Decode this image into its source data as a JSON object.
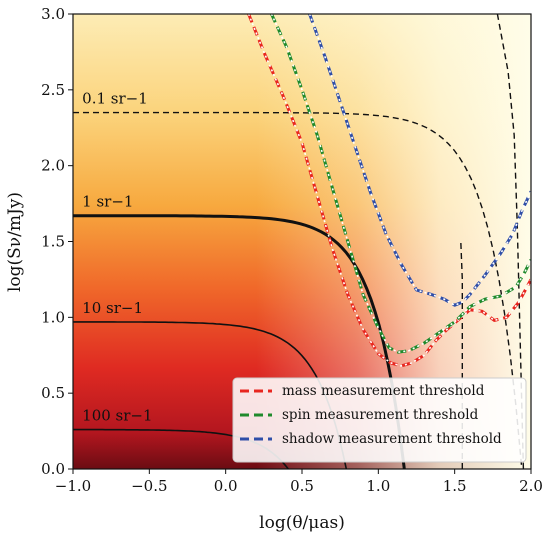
{
  "chart_data": {
    "type": "line",
    "xlabel": "log(θ/μas)",
    "ylabel": "log(Sν/mJy)",
    "xlim": [
      -1.0,
      2.0
    ],
    "ylim": [
      0.0,
      3.0
    ],
    "x_ticks": [
      "−1.0",
      "−0.5",
      "0.0",
      "0.5",
      "1.0",
      "1.5",
      "2.0"
    ],
    "y_ticks": [
      "0.0",
      "0.5",
      "1.0",
      "1.5",
      "2.0",
      "2.5",
      "3.0"
    ],
    "background": {
      "description_colors": [
        "#6b0c13",
        "#cf1f1f",
        "#f07a2a",
        "#f8bf58",
        "#fde6a6",
        "#fffbe2"
      ]
    },
    "density_contours": [
      {
        "label": "0.1 sr−1",
        "level_y": 2.35,
        "x_end": 1.94,
        "style": "dashed",
        "width": 1.4
      },
      {
        "label": "1 sr−1",
        "level_y": 1.67,
        "x_end": 1.17,
        "style": "solid",
        "width": 3.0
      },
      {
        "label": "10 sr−1",
        "level_y": 0.97,
        "x_end": 0.79,
        "style": "solid",
        "width": 1.6
      },
      {
        "label": "100 sr−1",
        "level_y": 0.26,
        "x_end": 0.41,
        "style": "solid",
        "width": 1.6
      }
    ],
    "extra_dashed": [
      {
        "x": [
          1.55,
          1.55,
          1.54
        ],
        "y": [
          0.0,
          1.25,
          1.5
        ]
      },
      {
        "x": [
          1.78,
          1.85,
          1.89,
          1.91,
          1.95
        ],
        "y": [
          3.0,
          2.62,
          2.2,
          1.6,
          0.0
        ]
      }
    ],
    "series": [
      {
        "name": "mass measurement threshold",
        "color": "#e8261f",
        "x": [
          0.15,
          0.25,
          0.38,
          0.5,
          0.6,
          0.7,
          0.8,
          0.9,
          1.0,
          1.08,
          1.15,
          1.22,
          1.3,
          1.38,
          1.45,
          1.52,
          1.6,
          1.68,
          1.76,
          1.84,
          1.92,
          2.0
        ],
        "y": [
          3.0,
          2.75,
          2.45,
          2.15,
          1.8,
          1.45,
          1.15,
          0.92,
          0.76,
          0.7,
          0.68,
          0.7,
          0.75,
          0.85,
          0.92,
          0.98,
          1.05,
          1.04,
          0.98,
          1.0,
          1.1,
          1.25
        ]
      },
      {
        "name": "spin measurement threshold",
        "color": "#1f8a2c",
        "x": [
          0.3,
          0.4,
          0.5,
          0.6,
          0.7,
          0.8,
          0.9,
          1.0,
          1.07,
          1.13,
          1.2,
          1.3,
          1.4,
          1.5,
          1.6,
          1.7,
          1.8,
          1.9,
          1.95,
          2.0
        ],
        "y": [
          3.0,
          2.78,
          2.5,
          2.2,
          1.85,
          1.5,
          1.15,
          0.93,
          0.8,
          0.77,
          0.78,
          0.83,
          0.9,
          0.97,
          1.07,
          1.12,
          1.14,
          1.2,
          1.28,
          1.38
        ]
      },
      {
        "name": "shadow measurement threshold",
        "color": "#2f4ea8",
        "x": [
          0.55,
          0.65,
          0.75,
          0.85,
          0.95,
          1.05,
          1.15,
          1.25,
          1.35,
          1.43,
          1.5,
          1.55,
          1.6,
          1.7,
          1.8,
          1.88,
          1.94,
          2.0
        ],
        "y": [
          3.0,
          2.72,
          2.42,
          2.12,
          1.82,
          1.55,
          1.35,
          1.18,
          1.15,
          1.12,
          1.08,
          1.1,
          1.15,
          1.28,
          1.42,
          1.55,
          1.7,
          1.83
        ]
      }
    ],
    "legend": {
      "placement": "lower-right",
      "entries": [
        "mass measurement threshold",
        "spin measurement threshold",
        "shadow measurement threshold"
      ]
    },
    "grid": false
  }
}
